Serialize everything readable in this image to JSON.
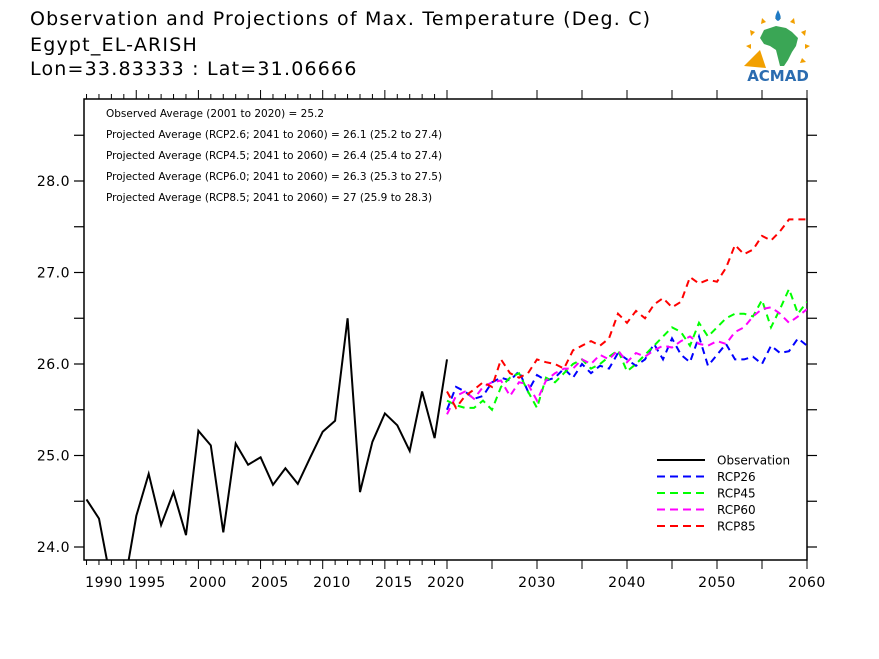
{
  "header": {
    "title": "Observation and Projections of Max. Temperature (Deg. C)",
    "station": "Egypt_EL-ARISH",
    "coords": "Lon=33.83333 : Lat=31.06666"
  },
  "logo": {
    "text": "ACMAD",
    "colors": {
      "text": "#2b6cb0",
      "africa": "#3aa655",
      "sun": "#f2a000",
      "drop": "#1f7ac4"
    }
  },
  "chart_data": {
    "type": "line",
    "title": "Observation and Projections of Max. Temperature (Deg. C)",
    "xlabel": "",
    "ylabel": "",
    "ylim": [
      23.85,
      28.9
    ],
    "y_ticks": [
      24.0,
      24.5,
      25.0,
      25.5,
      26.0,
      26.5,
      27.0,
      27.5,
      28.0,
      28.5
    ],
    "y_tick_labels": [
      "24.0",
      "25.0",
      "26.0",
      "27.0",
      "28.0"
    ],
    "y_tick_label_values": [
      24.0,
      25.0,
      26.0,
      27.0,
      28.0
    ],
    "x_tick_labels": [
      "1990",
      "1995",
      "2000",
      "2005",
      "2010",
      "2015",
      "2020",
      "2030",
      "2040",
      "2050",
      "2060"
    ],
    "x_axis_note": "piecewise: 1990-2020 and 2020-2060 use different scales",
    "grid": false,
    "legend_position": "bottom-right",
    "annotations": [
      "Observed Average (2001 to 2020) = 25.2",
      "Projected Average (RCP2.6; 2041 to 2060) = 26.1 (25.2 to 27.4)",
      "Projected Average (RCP4.5; 2041 to 2060) = 26.4 (25.4 to 27.4)",
      "Projected Average (RCP6.0; 2041 to 2060) = 26.3 (25.3 to 27.5)",
      "Projected Average (RCP8.5; 2041 to 2060) = 27 (25.9 to 28.3)"
    ],
    "observation": {
      "name": "Observation",
      "color": "#000000",
      "years": [
        1991,
        1992,
        1993,
        1994,
        1995,
        1996,
        1997,
        1998,
        1999,
        2000,
        2001,
        2002,
        2003,
        2004,
        2005,
        2006,
        2007,
        2008,
        2009,
        2010,
        2011,
        2012,
        2013,
        2014,
        2015,
        2016,
        2017,
        2018,
        2019,
        2020
      ],
      "values": [
        24.52,
        24.31,
        23.6,
        23.55,
        24.34,
        24.8,
        24.24,
        24.6,
        24.13,
        25.27,
        25.11,
        24.16,
        25.13,
        24.9,
        24.98,
        24.68,
        24.86,
        24.69,
        24.98,
        25.26,
        25.38,
        26.5,
        24.6,
        25.15,
        25.46,
        25.33,
        25.05,
        25.7,
        25.19,
        26.05
      ]
    },
    "series": [
      {
        "name": "RCP26",
        "color": "#0000ff",
        "years": [
          2020,
          2021,
          2022,
          2023,
          2024,
          2025,
          2026,
          2027,
          2028,
          2029,
          2030,
          2031,
          2032,
          2033,
          2034,
          2035,
          2036,
          2037,
          2038,
          2039,
          2040,
          2041,
          2042,
          2043,
          2044,
          2045,
          2046,
          2047,
          2048,
          2049,
          2050,
          2051,
          2052,
          2053,
          2054,
          2055,
          2056,
          2057,
          2058,
          2059,
          2060
        ],
        "values": [
          25.5,
          25.75,
          25.7,
          25.62,
          25.65,
          25.8,
          25.85,
          25.82,
          25.92,
          25.7,
          25.88,
          25.82,
          25.85,
          25.95,
          25.85,
          26.0,
          25.9,
          25.98,
          25.95,
          26.12,
          26.05,
          25.98,
          26.05,
          26.22,
          26.05,
          26.28,
          26.1,
          26.02,
          26.3,
          25.98,
          26.1,
          26.22,
          26.05,
          26.05,
          26.08,
          26.0,
          26.2,
          26.12,
          26.14,
          26.28,
          26.2
        ]
      },
      {
        "name": "RCP45",
        "color": "#00ff00",
        "years": [
          2020,
          2021,
          2022,
          2023,
          2024,
          2025,
          2026,
          2027,
          2028,
          2029,
          2030,
          2031,
          2032,
          2033,
          2034,
          2035,
          2036,
          2037,
          2038,
          2039,
          2040,
          2041,
          2042,
          2043,
          2044,
          2045,
          2046,
          2047,
          2048,
          2049,
          2050,
          2051,
          2052,
          2053,
          2054,
          2055,
          2056,
          2057,
          2058,
          2059,
          2060
        ],
        "values": [
          25.6,
          25.55,
          25.52,
          25.52,
          25.6,
          25.5,
          25.75,
          25.85,
          25.9,
          25.7,
          25.52,
          25.85,
          25.8,
          25.9,
          26.0,
          26.05,
          25.95,
          26.0,
          26.08,
          26.15,
          25.92,
          26.0,
          26.1,
          26.2,
          26.3,
          26.4,
          26.35,
          26.2,
          26.45,
          26.3,
          26.4,
          26.5,
          26.55,
          26.55,
          26.52,
          26.7,
          26.4,
          26.6,
          26.82,
          26.55,
          26.68
        ]
      },
      {
        "name": "RCP60",
        "color": "#ff00ff",
        "years": [
          2020,
          2021,
          2022,
          2023,
          2024,
          2025,
          2026,
          2027,
          2028,
          2029,
          2030,
          2031,
          2032,
          2033,
          2034,
          2035,
          2036,
          2037,
          2038,
          2039,
          2040,
          2041,
          2042,
          2043,
          2044,
          2045,
          2046,
          2047,
          2048,
          2049,
          2050,
          2051,
          2052,
          2053,
          2054,
          2055,
          2056,
          2057,
          2058,
          2059,
          2060
        ],
        "values": [
          25.45,
          25.65,
          25.7,
          25.62,
          25.75,
          25.8,
          25.82,
          25.65,
          25.8,
          25.78,
          25.6,
          25.82,
          25.9,
          25.95,
          25.95,
          26.05,
          26.0,
          26.1,
          26.05,
          26.15,
          26.02,
          26.12,
          26.08,
          26.15,
          26.2,
          26.18,
          26.25,
          26.3,
          26.22,
          26.2,
          26.25,
          26.22,
          26.35,
          26.4,
          26.52,
          26.6,
          26.62,
          26.55,
          26.45,
          26.52,
          26.6
        ]
      },
      {
        "name": "RCP85",
        "color": "#ff0000",
        "years": [
          2020,
          2021,
          2022,
          2023,
          2024,
          2025,
          2026,
          2027,
          2028,
          2029,
          2030,
          2031,
          2032,
          2033,
          2034,
          2035,
          2036,
          2037,
          2038,
          2039,
          2040,
          2041,
          2042,
          2043,
          2044,
          2045,
          2046,
          2047,
          2048,
          2049,
          2050,
          2051,
          2052,
          2053,
          2054,
          2055,
          2056,
          2057,
          2058,
          2059,
          2060
        ],
        "values": [
          25.7,
          25.52,
          25.65,
          25.72,
          25.8,
          25.75,
          26.05,
          25.9,
          25.85,
          25.9,
          26.05,
          26.02,
          26.0,
          25.95,
          26.15,
          26.2,
          26.25,
          26.2,
          26.28,
          26.55,
          26.45,
          26.58,
          26.5,
          26.65,
          26.72,
          26.62,
          26.68,
          26.95,
          26.88,
          26.92,
          26.9,
          27.05,
          27.3,
          27.2,
          27.25,
          27.4,
          27.35,
          27.45,
          27.58,
          27.58,
          27.58
        ]
      }
    ],
    "legend": [
      "Observation",
      "RCP26",
      "RCP45",
      "RCP60",
      "RCP85"
    ]
  }
}
